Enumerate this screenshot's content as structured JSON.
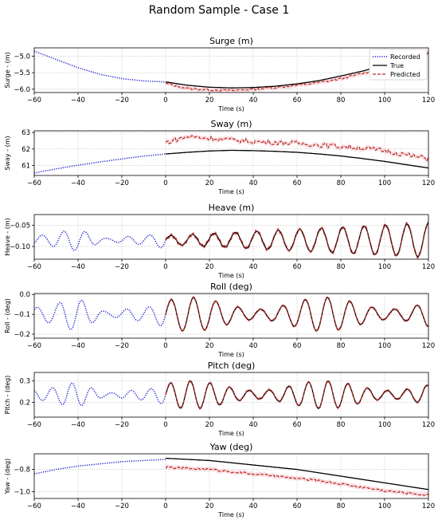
{
  "figure": {
    "title": "Random Sample - Case 1"
  },
  "legend": {
    "placement": "top-right of first panel",
    "entries": [
      {
        "label": "Recorded",
        "color": "#0000cc",
        "style": "dotted"
      },
      {
        "label": "True",
        "color": "#000000",
        "style": "solid"
      },
      {
        "label": "Predicted",
        "color": "#b22222",
        "style": "dashed"
      }
    ]
  },
  "colors": {
    "recorded": "#1f1fd0",
    "true": "#000000",
    "predicted": "#b5281f",
    "band": "#f7c6cf",
    "grid": "#b0b0b0"
  },
  "chart_data": [
    {
      "type": "line",
      "name": "surge",
      "title": "Surge (m)",
      "xlabel": "Time (s)",
      "ylabel": "Surge - (m)",
      "xlim": [
        -60,
        120
      ],
      "ylim": [
        -6.1,
        -4.75
      ],
      "xticks": [
        -60,
        -40,
        -20,
        0,
        20,
        40,
        60,
        80,
        100,
        120
      ],
      "yticks": [
        -5.0,
        -5.5,
        -6.0
      ],
      "ytick_labels": [
        "−5.0",
        "−5.5",
        "−6.0"
      ],
      "grid": true,
      "recorded": {
        "x": [
          -60,
          -50,
          -40,
          -30,
          -20,
          -10,
          0
        ],
        "y": [
          -4.85,
          -5.1,
          -5.35,
          -5.55,
          -5.68,
          -5.75,
          -5.78
        ]
      },
      "true": {
        "x": [
          0,
          10,
          20,
          30,
          40,
          50,
          60,
          70,
          80,
          90,
          100,
          110,
          120
        ],
        "y": [
          -5.78,
          -5.88,
          -5.94,
          -5.96,
          -5.95,
          -5.91,
          -5.84,
          -5.74,
          -5.6,
          -5.45,
          -5.27,
          -5.08,
          -4.9
        ]
      },
      "predicted": {
        "x": [
          0,
          10,
          20,
          30,
          40,
          50,
          60,
          70,
          80,
          90,
          100,
          110,
          120
        ],
        "y": [
          -5.82,
          -5.98,
          -6.02,
          -6.04,
          -6.0,
          -5.95,
          -5.88,
          -5.8,
          -5.68,
          -5.52,
          -5.35,
          -5.15,
          -4.92
        ]
      }
    },
    {
      "type": "line",
      "name": "sway",
      "title": "Sway (m)",
      "xlabel": "Time (s)",
      "ylabel": "Sway - (m)",
      "xlim": [
        -60,
        120
      ],
      "ylim": [
        60.4,
        63.1
      ],
      "xticks": [
        -60,
        -40,
        -20,
        0,
        20,
        40,
        60,
        80,
        100,
        120
      ],
      "yticks": [
        61,
        62,
        63
      ],
      "ytick_labels": [
        "61",
        "62",
        "63"
      ],
      "grid": true,
      "recorded": {
        "x": [
          -60,
          -50,
          -40,
          -30,
          -20,
          -10,
          0
        ],
        "y": [
          60.55,
          60.8,
          61.02,
          61.22,
          61.4,
          61.57,
          61.7
        ]
      },
      "true": {
        "x": [
          0,
          10,
          20,
          30,
          40,
          50,
          60,
          70,
          80,
          90,
          100,
          110,
          120
        ],
        "y": [
          61.7,
          61.8,
          61.88,
          61.92,
          61.9,
          61.86,
          61.8,
          61.7,
          61.58,
          61.42,
          61.25,
          61.05,
          60.85
        ]
      },
      "predicted": {
        "x": [
          0,
          10,
          20,
          30,
          40,
          50,
          60,
          70,
          80,
          90,
          100,
          110,
          120
        ],
        "y": [
          62.4,
          62.75,
          62.65,
          62.55,
          62.45,
          62.4,
          62.35,
          62.25,
          62.15,
          62.05,
          61.9,
          61.65,
          61.4
        ]
      }
    },
    {
      "type": "line",
      "name": "heave",
      "title": "Heave (m)",
      "xlabel": "Time (s)",
      "ylabel": "Heave - (m)",
      "xlim": [
        -60,
        120
      ],
      "ylim": [
        -0.13,
        -0.025
      ],
      "xticks": [
        -60,
        -40,
        -20,
        0,
        20,
        40,
        60,
        80,
        100,
        120
      ],
      "yticks": [
        -0.05,
        -0.1
      ],
      "ytick_labels": [
        "−0.05",
        "−0.10"
      ],
      "grid": true,
      "wave": {
        "mean": -0.085,
        "period_s": 9.8,
        "amplitude_recorded": 0.022,
        "amplitude_true_start": 0.01,
        "amplitude_true_end": 0.04
      }
    },
    {
      "type": "line",
      "name": "roll",
      "title": "Roll (deg)",
      "xlabel": "Time (s)",
      "ylabel": "Roll - (deg)",
      "xlim": [
        -60,
        120
      ],
      "ylim": [
        -0.22,
        0.005
      ],
      "xticks": [
        -60,
        -40,
        -20,
        0,
        20,
        40,
        60,
        80,
        100,
        120
      ],
      "yticks": [
        0.0,
        -0.1,
        -0.2
      ],
      "ytick_labels": [
        "0.0",
        "−0.1",
        "−0.2"
      ],
      "grid": true,
      "wave": {
        "mean": -0.1,
        "period_s": 10.2,
        "amplitude_recorded": 0.07,
        "amplitude_true": 0.085
      }
    },
    {
      "type": "line",
      "name": "pitch",
      "title": "Pitch (deg)",
      "xlabel": "Time (s)",
      "ylabel": "Pitch - (deg)",
      "xlim": [
        -60,
        120
      ],
      "ylim": [
        0.13,
        0.34
      ],
      "xticks": [
        -60,
        -40,
        -20,
        0,
        20,
        40,
        60,
        80,
        100,
        120
      ],
      "yticks": [
        0.3,
        0.2
      ],
      "ytick_labels": [
        "0.3",
        "0.2"
      ],
      "grid": true,
      "wave": {
        "mean": 0.235,
        "period_s": 9.0,
        "amplitude_recorded": 0.05,
        "amplitude_true": 0.065
      }
    },
    {
      "type": "line",
      "name": "yaw",
      "title": "Yaw (deg)",
      "xlabel": "Time (s)",
      "ylabel": "Yaw - (deg)",
      "xlim": [
        -60,
        120
      ],
      "ylim": [
        -1.06,
        -0.66
      ],
      "xticks": [
        -60,
        -40,
        -20,
        0,
        20,
        40,
        60,
        80,
        100,
        120
      ],
      "yticks": [
        -0.8,
        -1.0
      ],
      "ytick_labels": [
        "−0.8",
        "−1.0"
      ],
      "grid": true,
      "recorded": {
        "x": [
          -60,
          -50,
          -40,
          -30,
          -20,
          -10,
          0
        ],
        "y": [
          -0.84,
          -0.8,
          -0.77,
          -0.75,
          -0.73,
          -0.72,
          -0.71
        ]
      },
      "true": {
        "x": [
          0,
          10,
          20,
          30,
          40,
          50,
          60,
          70,
          80,
          90,
          100,
          110,
          120
        ],
        "y": [
          -0.7,
          -0.71,
          -0.72,
          -0.74,
          -0.76,
          -0.78,
          -0.8,
          -0.83,
          -0.86,
          -0.89,
          -0.92,
          -0.95,
          -0.98
        ]
      },
      "predicted": {
        "x": [
          0,
          10,
          20,
          30,
          40,
          50,
          60,
          70,
          80,
          90,
          100,
          110,
          120
        ],
        "y": [
          -0.78,
          -0.79,
          -0.8,
          -0.82,
          -0.84,
          -0.86,
          -0.88,
          -0.9,
          -0.93,
          -0.96,
          -0.99,
          -1.01,
          -1.03
        ]
      }
    }
  ]
}
